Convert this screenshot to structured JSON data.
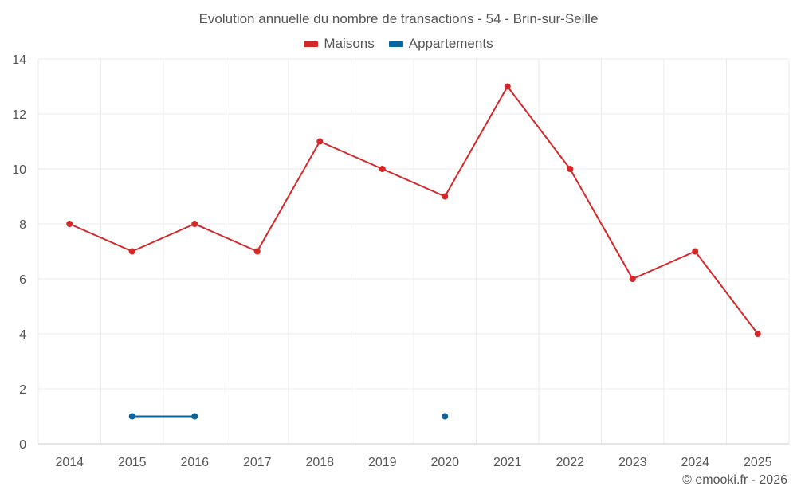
{
  "chart_data": {
    "type": "line",
    "title": "Evolution annuelle du nombre de transactions - 54 - Brin-sur-Seille",
    "xlabel": "",
    "ylabel": "",
    "categories": [
      "2014",
      "2015",
      "2016",
      "2017",
      "2018",
      "2019",
      "2020",
      "2021",
      "2022",
      "2023",
      "2024",
      "2025"
    ],
    "ylim": [
      0,
      14
    ],
    "yticks": [
      0,
      2,
      4,
      6,
      8,
      10,
      12,
      14
    ],
    "grid": true,
    "legend_position": "top-center",
    "series": [
      {
        "name": "Maisons",
        "color": "#d62728",
        "values": [
          8,
          7,
          8,
          7,
          11,
          10,
          9,
          13,
          10,
          6,
          7,
          4
        ]
      },
      {
        "name": "Appartements",
        "color": "#0a64a0",
        "values": [
          null,
          1,
          1,
          null,
          null,
          null,
          1,
          null,
          null,
          null,
          null,
          null
        ]
      }
    ]
  },
  "footer": {
    "credit": "© emooki.fr - 2026"
  }
}
